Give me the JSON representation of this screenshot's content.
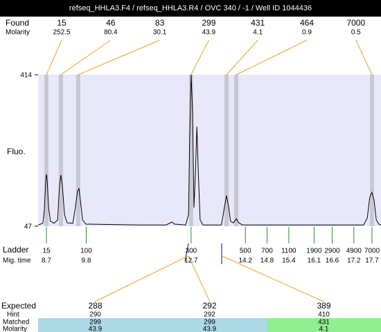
{
  "chart_data": {
    "type": "line",
    "title": "refseq_HHLA3.F4 / refseq_HHLA3.R4 / OVC 340 / -1 / Well ID 1044436",
    "y_label": "Fluo.",
    "ylim": [
      47,
      414
    ],
    "yticks": [
      47,
      414
    ],
    "xlim": [
      8.47,
      17.95
    ],
    "color": "#000000",
    "x": [
      8.47,
      8.6,
      8.64,
      8.68,
      8.7,
      8.72,
      8.76,
      8.81,
      8.91,
      9.01,
      9.06,
      9.1,
      9.14,
      9.2,
      9.27,
      9.43,
      9.5,
      9.56,
      9.6,
      9.64,
      9.7,
      9.79,
      11.25,
      12.01,
      12.17,
      12.24,
      12.55,
      12.63,
      12.66,
      12.7,
      12.74,
      12.78,
      12.82,
      12.86,
      12.9,
      12.95,
      13.03,
      13.54,
      13.62,
      13.68,
      13.74,
      13.79,
      13.87,
      13.95,
      14.02,
      14.12,
      17.47,
      17.57,
      17.64,
      17.7,
      17.76,
      17.82,
      17.89,
      17.95
    ],
    "values": [
      50,
      54,
      84,
      156,
      173,
      159,
      92,
      59,
      54,
      62,
      143,
      171,
      146,
      75,
      55,
      54,
      92,
      132,
      138,
      109,
      62,
      52,
      50,
      50,
      57,
      52,
      50,
      75,
      260,
      414,
      327,
      92,
      176,
      288,
      176,
      62,
      50,
      50,
      92,
      121,
      92,
      59,
      55,
      65,
      55,
      50,
      50,
      67,
      117,
      129,
      109,
      62,
      52,
      50
    ],
    "found": {
      "label": "Found",
      "molarity_label": "Molarity",
      "sizes": [
        15,
        46,
        83,
        299,
        431,
        464,
        7000
      ],
      "molarity": [
        252.5,
        80.4,
        30.1,
        43.9,
        4.1,
        0.9,
        0.5
      ],
      "x": [
        8.7,
        9.1,
        9.58,
        12.7,
        13.68,
        13.95,
        17.7
      ]
    },
    "ladder": {
      "label": "Ladder",
      "time_label": "Mig. time",
      "color": "#2e8b2e",
      "sizes": [
        15,
        100,
        300,
        500,
        700,
        1100,
        1900,
        2900,
        4900,
        7000
      ],
      "times": [
        8.7,
        9.8,
        12.7,
        14.2,
        14.8,
        15.4,
        16.1,
        16.6,
        17.2,
        17.7
      ]
    },
    "expected": {
      "label": "Expected",
      "hint_label": "Hint",
      "matched_label": "Matched",
      "molarity_label": "Molarity",
      "columns": [
        {
          "size": 288,
          "hint": 290,
          "matched": 299,
          "molarity": 43.9,
          "color": "#add8e6"
        },
        {
          "size": 292,
          "hint": 292,
          "matched": 299,
          "molarity": 43.9,
          "color": "#add8e6"
        },
        {
          "size": 389,
          "hint": 410,
          "matched": 431,
          "molarity": 4.1,
          "color": "#90ee90"
        }
      ]
    }
  }
}
